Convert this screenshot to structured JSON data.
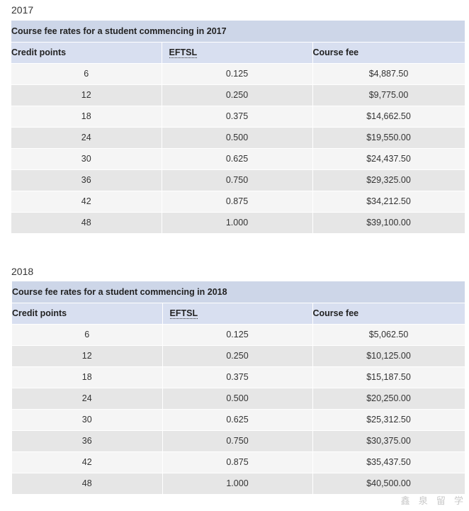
{
  "tables": [
    {
      "year": "2017",
      "caption": "Course fee rates for a student commencing in 2017",
      "headers": [
        "Credit points",
        "EFTSL",
        "Course fee"
      ],
      "rows": [
        [
          "6",
          "0.125",
          "$4,887.50"
        ],
        [
          "12",
          "0.250",
          "$9,775.00"
        ],
        [
          "18",
          "0.375",
          "$14,662.50"
        ],
        [
          "24",
          "0.500",
          "$19,550.00"
        ],
        [
          "30",
          "0.625",
          "$24,437.50"
        ],
        [
          "36",
          "0.750",
          "$29,325.00"
        ],
        [
          "42",
          "0.875",
          "$34,212.50"
        ],
        [
          "48",
          "1.000",
          "$39,100.00"
        ]
      ]
    },
    {
      "year": "2018",
      "caption": "Course fee rates for a student commencing in 2018",
      "headers": [
        "Credit points",
        "EFTSL",
        "Course fee"
      ],
      "rows": [
        [
          "6",
          "0.125",
          "$5,062.50"
        ],
        [
          "12",
          "0.250",
          "$10,125.00"
        ],
        [
          "18",
          "0.375",
          "$15,187.50"
        ],
        [
          "24",
          "0.500",
          "$20,250.00"
        ],
        [
          "30",
          "0.625",
          "$25,312.50"
        ],
        [
          "36",
          "0.750",
          "$30,375.00"
        ],
        [
          "42",
          "0.875",
          "$35,437.50"
        ],
        [
          "48",
          "1.000",
          "$40,500.00"
        ]
      ]
    }
  ],
  "watermark": "鑫 泉 留 学"
}
